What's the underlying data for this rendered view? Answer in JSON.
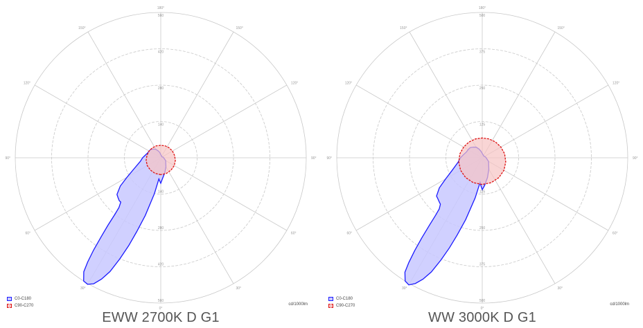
{
  "colors": {
    "c0": "#1a1aff",
    "c0_fill": "#c8c8ff",
    "c90": "#dd1111",
    "c90_fill": "#f7c3c3",
    "grid": "#c8c8c8",
    "label": "#999999",
    "caption": "#555555"
  },
  "chart_data": [
    {
      "type": "polar",
      "caption": "EWW 2700K D G1",
      "units": "cd/1000lm",
      "rmax": 560,
      "ring_labels": [
        "140",
        "280",
        "420",
        "560"
      ],
      "angle_labels": {
        "top": "180°",
        "upper": "150°",
        "mid_upper": "120°",
        "side": "90°",
        "mid_lower": "60°",
        "lower": "30°",
        "bottom": "0°"
      },
      "legend": [
        "C0-C180",
        "C90-C270"
      ],
      "series": [
        {
          "name": "C0-C180",
          "points": [
            [
              0,
              98
            ],
            [
              3,
              88
            ],
            [
              5,
              82
            ],
            [
              10,
              140
            ],
            [
              15,
              230
            ],
            [
              18,
              300
            ],
            [
              20,
              360
            ],
            [
              22,
              420
            ],
            [
              24,
              480
            ],
            [
              26,
              520
            ],
            [
              28,
              550
            ],
            [
              30,
              563
            ],
            [
              32,
              560
            ],
            [
              34,
              530
            ],
            [
              35,
              490
            ],
            [
              36,
              440
            ],
            [
              37,
              380
            ],
            [
              38,
              330
            ],
            [
              39,
              280
            ],
            [
              40,
              250
            ],
            [
              42,
              230
            ],
            [
              44,
              230
            ],
            [
              47,
              225
            ],
            [
              50,
              220
            ],
            [
              55,
              190
            ],
            [
              60,
              150
            ],
            [
              68,
              110
            ],
            [
              80,
              80
            ],
            [
              90,
              70
            ],
            [
              100,
              60
            ],
            [
              110,
              54
            ],
            [
              120,
              52
            ],
            [
              130,
              50
            ],
            [
              140,
              44
            ],
            [
              150,
              38
            ],
            [
              160,
              28
            ],
            [
              170,
              20
            ],
            [
              180,
              12
            ],
            [
              200,
              8
            ],
            [
              230,
              6
            ],
            [
              260,
              10
            ],
            [
              300,
              22
            ],
            [
              330,
              40
            ],
            [
              345,
              60
            ],
            [
              355,
              80
            ],
            [
              360,
              98
            ]
          ]
        },
        {
          "name": "C90-C270",
          "points": [
            [
              0,
              65
            ],
            [
              20,
              64
            ],
            [
              40,
              62
            ],
            [
              60,
              60
            ],
            [
              80,
              57
            ],
            [
              100,
              54
            ],
            [
              120,
              52
            ],
            [
              140,
              50
            ],
            [
              160,
              49
            ],
            [
              180,
              48
            ],
            [
              200,
              49
            ],
            [
              220,
              50
            ],
            [
              240,
              52
            ],
            [
              260,
              54
            ],
            [
              280,
              57
            ],
            [
              300,
              60
            ],
            [
              320,
              62
            ],
            [
              340,
              64
            ],
            [
              360,
              65
            ]
          ]
        }
      ]
    },
    {
      "type": "polar",
      "caption": "WW 3000K D G1",
      "units": "cd/1000lm",
      "rmax": 500,
      "ring_labels": [
        "125",
        "250",
        "375",
        "500"
      ],
      "angle_labels": {
        "top": "180°",
        "upper": "150°",
        "mid_upper": "120°",
        "side": "90°",
        "mid_lower": "60°",
        "lower": "30°",
        "bottom": "0°"
      },
      "legend": [
        "C0-C180",
        "C90-C270"
      ],
      "series": [
        {
          "name": "C0-C180",
          "points": [
            [
              0,
              110
            ],
            [
              3,
              95
            ],
            [
              5,
              85
            ],
            [
              10,
              140
            ],
            [
              15,
              220
            ],
            [
              18,
              280
            ],
            [
              20,
              330
            ],
            [
              22,
              380
            ],
            [
              24,
              430
            ],
            [
              26,
              465
            ],
            [
              28,
              490
            ],
            [
              30,
              505
            ],
            [
              32,
              500
            ],
            [
              34,
              475
            ],
            [
              35,
              440
            ],
            [
              36,
              395
            ],
            [
              37,
              345
            ],
            [
              38,
              295
            ],
            [
              39,
              255
            ],
            [
              40,
              230
            ],
            [
              42,
              215
            ],
            [
              44,
              212
            ],
            [
              47,
              208
            ],
            [
              50,
              205
            ],
            [
              55,
              180
            ],
            [
              60,
              145
            ],
            [
              68,
              110
            ],
            [
              80,
              84
            ],
            [
              90,
              75
            ],
            [
              100,
              65
            ],
            [
              110,
              58
            ],
            [
              120,
              56
            ],
            [
              130,
              54
            ],
            [
              140,
              48
            ],
            [
              150,
              42
            ],
            [
              160,
              32
            ],
            [
              170,
              22
            ],
            [
              180,
              15
            ],
            [
              200,
              10
            ],
            [
              230,
              8
            ],
            [
              260,
              12
            ],
            [
              300,
              25
            ],
            [
              330,
              45
            ],
            [
              345,
              70
            ],
            [
              355,
              95
            ],
            [
              360,
              110
            ]
          ]
        },
        {
          "name": "C90-C270",
          "points": [
            [
              0,
              92
            ],
            [
              20,
              91
            ],
            [
              40,
              89
            ],
            [
              60,
              86
            ],
            [
              80,
              82
            ],
            [
              100,
              78
            ],
            [
              120,
              74
            ],
            [
              140,
              71
            ],
            [
              160,
              69
            ],
            [
              180,
              68
            ],
            [
              200,
              69
            ],
            [
              220,
              71
            ],
            [
              240,
              74
            ],
            [
              260,
              78
            ],
            [
              280,
              82
            ],
            [
              300,
              86
            ],
            [
              320,
              89
            ],
            [
              340,
              91
            ],
            [
              360,
              92
            ]
          ]
        }
      ]
    }
  ]
}
